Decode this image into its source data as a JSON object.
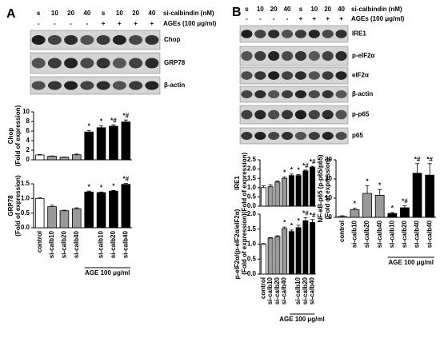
{
  "figure": {
    "panels": [
      {
        "label": "A",
        "conc_row": [
          "s",
          "10",
          "20",
          "40",
          "s",
          "10",
          "20",
          "40"
        ],
        "conc_label": "si-calbindin (nM)",
        "age_row": [
          "-",
          "-",
          "-",
          "-",
          "+",
          "+",
          "+",
          "+"
        ],
        "age_label": "AGEs (100 μg/ml)",
        "blots": [
          "Chop",
          "GRP78",
          "β-actin"
        ]
      },
      {
        "label": "B",
        "conc_row": [
          "s",
          "10",
          "20",
          "40",
          "s",
          "10",
          "20",
          "40"
        ],
        "conc_label": "si-calbindin (nM)",
        "age_row": [
          "-",
          "-",
          "-",
          "-",
          "+",
          "+",
          "+",
          "+"
        ],
        "age_label": "AGEs (100 μg/ml)",
        "blots": [
          "IRE1",
          "p-eIF2α",
          "eIF2α",
          "β-actin",
          "p-p65",
          "p65"
        ]
      }
    ]
  },
  "chart_data": [
    {
      "type": "bar",
      "ylabel": [
        "Chop",
        "(Fold of expression)"
      ],
      "categories": [
        null,
        null,
        null,
        null,
        null,
        null,
        null,
        null
      ],
      "values": [
        1.0,
        0.75,
        0.55,
        1.05,
        5.8,
        6.7,
        7.0,
        7.9
      ],
      "errors": [
        0.1,
        0.05,
        0.05,
        0.15,
        0.3,
        0.4,
        0.3,
        0.4
      ],
      "annotations": [
        null,
        null,
        null,
        null,
        "*",
        "*",
        "*#",
        "*#"
      ],
      "colors": [
        "#ffffff",
        "#999999",
        "#999999",
        "#999999",
        "#000000",
        "#000000",
        "#000000",
        "#000000"
      ],
      "ylim": [
        0,
        10
      ],
      "yticks": [
        0,
        2,
        4,
        6,
        8,
        10
      ]
    },
    {
      "type": "bar",
      "ylabel": [
        "GRP78",
        "(Fold of expression)"
      ],
      "categories": [
        "control",
        "si-calb10",
        "si-calb20",
        "si-calb40",
        null,
        "si-calb10",
        "si-calb20",
        "si-calb40"
      ],
      "group_label": "AGE 100 μg/ml",
      "values": [
        1.0,
        0.72,
        0.58,
        0.65,
        1.22,
        1.2,
        1.25,
        1.48
      ],
      "errors": [
        0.02,
        0.05,
        0.02,
        0.03,
        0.03,
        0.02,
        0.02,
        0.03
      ],
      "annotations": [
        null,
        null,
        null,
        null,
        "*",
        "*",
        "*",
        "*#"
      ],
      "colors": [
        "#ffffff",
        "#999999",
        "#999999",
        "#999999",
        "#000000",
        "#000000",
        "#000000",
        "#000000"
      ],
      "ylim": [
        0,
        1.5
      ],
      "yticks": [
        {
          "value": 0,
          "label": "0.0"
        },
        {
          "value": 0.5,
          "label": "0.5"
        },
        {
          "value": 1,
          "label": "1.0"
        },
        {
          "value": 1.5,
          "label": "1.5"
        }
      ]
    },
    {
      "type": "bar",
      "ylabel": [
        "IRE1",
        "(Fold of expression)"
      ],
      "categories": [
        null,
        null,
        null,
        null,
        null,
        null,
        null,
        null
      ],
      "values": [
        1.0,
        1.05,
        1.3,
        1.5,
        1.65,
        1.65,
        1.9,
        2.1
      ],
      "errors": [
        0.1,
        0.1,
        0.05,
        0.08,
        0.08,
        0.05,
        0.05,
        0.05
      ],
      "annotations": [
        null,
        null,
        null,
        "*",
        "*",
        "*",
        "*#",
        "*#"
      ],
      "colors": [
        "#ffffff",
        "#999999",
        "#999999",
        "#999999",
        "#000000",
        "#000000",
        "#000000",
        "#000000"
      ],
      "ylim": [
        0,
        2.5
      ],
      "yticks": [
        {
          "value": 0,
          "label": "0.0"
        },
        {
          "value": 0.5,
          "label": "0.5"
        },
        {
          "value": 1,
          "label": "1.0"
        },
        {
          "value": 1.5,
          "label": "1.5"
        },
        {
          "value": 2,
          "label": "2.0"
        },
        {
          "value": 2.5,
          "label": "2.5"
        }
      ]
    },
    {
      "type": "bar",
      "ylabel": [
        "p-eIF2α/(p-eIF2α/eIF2α)",
        "(Fold of expression)"
      ],
      "categories": [
        "control",
        "si-calb10",
        "si-calb20",
        "si-calb40",
        null,
        "si-calb10",
        "si-calb20",
        "si-calb40"
      ],
      "group_label": "AGE 100 μg/ml",
      "values": [
        1.0,
        1.2,
        1.25,
        1.52,
        1.42,
        1.55,
        1.78,
        1.72
      ],
      "errors": [
        0.02,
        0.02,
        0.03,
        0.05,
        0.05,
        0.08,
        0.1,
        0.1
      ],
      "annotations": [
        null,
        null,
        null,
        "*",
        "*",
        "*",
        "*#",
        "*#"
      ],
      "colors": [
        "#ffffff",
        "#999999",
        "#999999",
        "#999999",
        "#000000",
        "#000000",
        "#000000",
        "#000000"
      ],
      "ylim": [
        0,
        2
      ],
      "yticks": [
        {
          "value": 0,
          "label": "0.0"
        },
        {
          "value": 0.5,
          "label": "0.5"
        },
        {
          "value": 1,
          "label": "1.0"
        },
        {
          "value": 1.5,
          "label": "1.5"
        },
        {
          "value": 2,
          "label": "2.0"
        }
      ]
    },
    {
      "type": "bar",
      "ylabel": [
        "NF-κB-p65 (p-p65/p65)",
        "(Fold of expression)"
      ],
      "categories": [
        "control",
        "si-calb10",
        "si-calb20",
        "si-calb40",
        "si-calb10",
        "si-calb20",
        "si-calb40",
        "si-calb40"
      ],
      "group_label": "AGE 100 μg/ml",
      "values": [
        0.5,
        4,
        12.5,
        11.5,
        2,
        5,
        23,
        22
      ],
      "errors": [
        0.3,
        0.8,
        4,
        3,
        0.5,
        1,
        5,
        6
      ],
      "annotations": [
        null,
        "*",
        "*",
        "*",
        "*",
        "*#",
        "*#",
        "*#"
      ],
      "colors": [
        "#ffffff",
        "#999999",
        "#999999",
        "#999999",
        "#000000",
        "#000000",
        "#000000",
        "#000000"
      ],
      "ylim": [
        0,
        30
      ],
      "yticks": [
        0,
        10,
        20,
        30
      ]
    }
  ]
}
